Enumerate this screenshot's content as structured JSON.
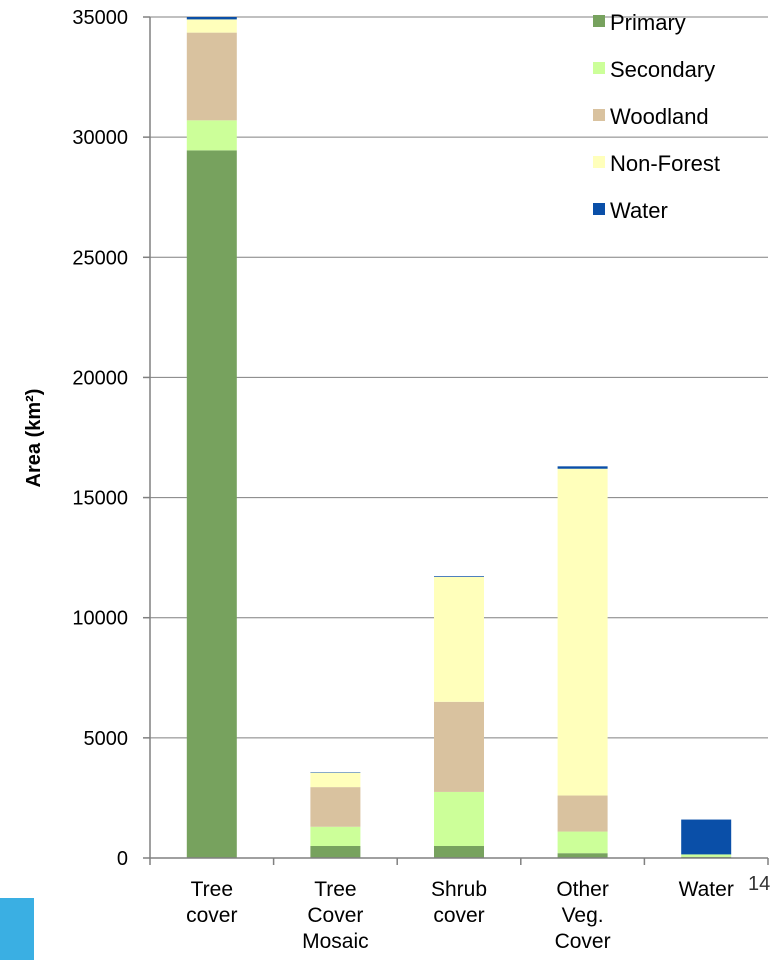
{
  "page_number": "14",
  "colors": {
    "accent_block": "#3AAFE3",
    "grid": "#808080"
  },
  "chart_data": {
    "type": "bar",
    "stacked": true,
    "ylabel": "Area (km²)",
    "xlabel": "",
    "ylim": [
      0,
      35000
    ],
    "yticks": [
      0,
      5000,
      10000,
      15000,
      20000,
      25000,
      30000,
      35000
    ],
    "grid": true,
    "legend_position": "top-right",
    "categories": [
      [
        "Tree",
        "cover"
      ],
      [
        "Tree",
        "Cover",
        "Mosaic"
      ],
      [
        "Shrub",
        "cover"
      ],
      [
        "Other",
        "Veg.",
        "Cover"
      ],
      [
        "Water"
      ]
    ],
    "series": [
      {
        "name": "Primary",
        "color": "#77A25E",
        "values": [
          29450,
          500,
          500,
          200,
          50
        ]
      },
      {
        "name": "Secondary",
        "color": "#CCFF99",
        "values": [
          1250,
          800,
          2250,
          900,
          100
        ]
      },
      {
        "name": "Woodland",
        "color": "#D9C29F",
        "values": [
          3650,
          1650,
          3750,
          1500,
          0
        ]
      },
      {
        "name": "Non-Forest",
        "color": "#FFFFBB",
        "values": [
          550,
          600,
          5200,
          13600,
          0
        ]
      },
      {
        "name": "Water",
        "color": "#0A4FA8",
        "values": [
          100,
          20,
          30,
          100,
          1450
        ]
      }
    ]
  }
}
